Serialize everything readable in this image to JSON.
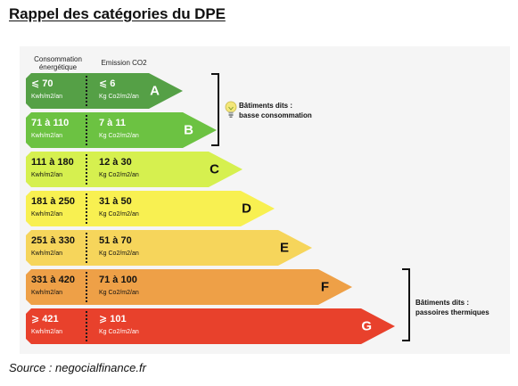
{
  "title": "Rappel des catégories du DPE",
  "columns": {
    "energy": "Consommation\nénergétique",
    "co2": "Emission CO2"
  },
  "classes": [
    {
      "letter": "A",
      "energy": "⩽ 70",
      "energy_unit": "Kwh/m2/an",
      "co2": "⩽ 6",
      "co2_unit": "Kg Co2/m2/an",
      "color": "#55a046",
      "text_color": "#ffffff"
    },
    {
      "letter": "B",
      "energy": "71 à 110",
      "energy_unit": "Kwh/m2/an",
      "co2": "7 à 11",
      "co2_unit": "Kg Co2/m2/an",
      "color": "#6cc242",
      "text_color": "#ffffff"
    },
    {
      "letter": "C",
      "energy": "111 à 180",
      "energy_unit": "Kwh/m2/an",
      "co2": "12 à 30",
      "co2_unit": "Kg Co2/m2/an",
      "color": "#d6f04f",
      "text_color": "#111111"
    },
    {
      "letter": "D",
      "energy": "181 à 250",
      "energy_unit": "Kwh/m2/an",
      "co2": "31 à 50",
      "co2_unit": "Kg Co2/m2/an",
      "color": "#f8f051",
      "text_color": "#111111"
    },
    {
      "letter": "E",
      "energy": "251 à 330",
      "energy_unit": "Kwh/m2/an",
      "co2": "51 à 70",
      "co2_unit": "Kg Co2/m2/an",
      "color": "#f6d55b",
      "text_color": "#111111"
    },
    {
      "letter": "F",
      "energy": "331 à 420",
      "energy_unit": "Kwh/m2/an",
      "co2": "71 à 100",
      "co2_unit": "Kg Co2/m2/an",
      "color": "#eea047",
      "text_color": "#111111"
    },
    {
      "letter": "G",
      "energy": "⩾ 421",
      "energy_unit": "Kwh/m2/an",
      "co2": "⩾ 101",
      "co2_unit": "Kg Co2/m2/an",
      "color": "#e8412c",
      "text_color": "#ffffff"
    }
  ],
  "groups": {
    "low": {
      "line1": "Bâtiments dits :",
      "line2": "basse consommation",
      "icon": "lightbulb-icon"
    },
    "high": {
      "line1": "Bâtiments dits :",
      "line2": "passoires thermiques"
    }
  },
  "source": "Source : negocialfinance.fr"
}
